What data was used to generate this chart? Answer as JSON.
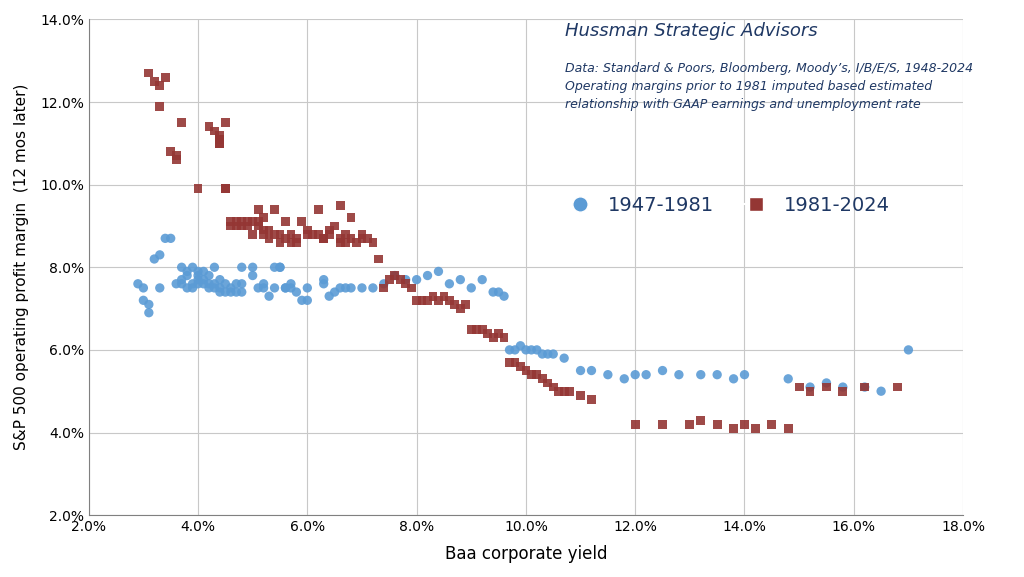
{
  "title": "Hussman Strategic Advisors",
  "subtitle1": "Data: Standard & Poors, Bloomberg, Moody’s, I/B/E/S, 1948-2024",
  "subtitle2": "Operating margins prior to 1981 imputed based estimated",
  "subtitle3": "relationship with GAAP earnings and unemployment rate",
  "xlabel": "Baa corporate yield",
  "ylabel": "S&P 500 operating profit margin  (12 mos later)",
  "legend1": "1947-1981",
  "legend2": "1981-2024",
  "color1": "#5B9BD5",
  "color2": "#943634",
  "xlim": [
    0.02,
    0.18
  ],
  "ylim": [
    0.02,
    0.14
  ],
  "xticks": [
    0.02,
    0.04,
    0.06,
    0.08,
    0.1,
    0.12,
    0.14,
    0.16,
    0.18
  ],
  "yticks": [
    0.02,
    0.04,
    0.06,
    0.08,
    0.1,
    0.12,
    0.14
  ],
  "text_color": "#1F3864",
  "series1_x": [
    0.029,
    0.03,
    0.03,
    0.031,
    0.031,
    0.032,
    0.033,
    0.033,
    0.034,
    0.035,
    0.036,
    0.037,
    0.037,
    0.037,
    0.038,
    0.038,
    0.038,
    0.039,
    0.039,
    0.039,
    0.04,
    0.04,
    0.04,
    0.04,
    0.041,
    0.041,
    0.041,
    0.042,
    0.042,
    0.042,
    0.043,
    0.043,
    0.043,
    0.044,
    0.044,
    0.044,
    0.045,
    0.045,
    0.046,
    0.046,
    0.047,
    0.047,
    0.048,
    0.048,
    0.048,
    0.05,
    0.05,
    0.051,
    0.052,
    0.052,
    0.053,
    0.054,
    0.054,
    0.055,
    0.055,
    0.056,
    0.056,
    0.057,
    0.057,
    0.058,
    0.059,
    0.06,
    0.06,
    0.063,
    0.063,
    0.064,
    0.065,
    0.066,
    0.067,
    0.068,
    0.07,
    0.072,
    0.074,
    0.076,
    0.078,
    0.08,
    0.082,
    0.084,
    0.086,
    0.088,
    0.09,
    0.092,
    0.094,
    0.095,
    0.096,
    0.097,
    0.098,
    0.099,
    0.1,
    0.101,
    0.102,
    0.103,
    0.104,
    0.105,
    0.107,
    0.11,
    0.112,
    0.115,
    0.118,
    0.12,
    0.122,
    0.125,
    0.128,
    0.132,
    0.135,
    0.138,
    0.14,
    0.148,
    0.152,
    0.155,
    0.158,
    0.162,
    0.165,
    0.17
  ],
  "series1_y": [
    0.076,
    0.072,
    0.075,
    0.071,
    0.069,
    0.082,
    0.075,
    0.083,
    0.087,
    0.087,
    0.076,
    0.076,
    0.077,
    0.08,
    0.075,
    0.078,
    0.079,
    0.075,
    0.076,
    0.08,
    0.076,
    0.077,
    0.078,
    0.079,
    0.076,
    0.077,
    0.079,
    0.075,
    0.076,
    0.078,
    0.075,
    0.076,
    0.08,
    0.074,
    0.075,
    0.077,
    0.074,
    0.076,
    0.074,
    0.075,
    0.074,
    0.076,
    0.074,
    0.076,
    0.08,
    0.08,
    0.078,
    0.075,
    0.075,
    0.076,
    0.073,
    0.075,
    0.08,
    0.08,
    0.08,
    0.075,
    0.075,
    0.075,
    0.076,
    0.074,
    0.072,
    0.072,
    0.075,
    0.076,
    0.077,
    0.073,
    0.074,
    0.075,
    0.075,
    0.075,
    0.075,
    0.075,
    0.076,
    0.078,
    0.077,
    0.077,
    0.078,
    0.079,
    0.076,
    0.077,
    0.075,
    0.077,
    0.074,
    0.074,
    0.073,
    0.06,
    0.06,
    0.061,
    0.06,
    0.06,
    0.06,
    0.059,
    0.059,
    0.059,
    0.058,
    0.055,
    0.055,
    0.054,
    0.053,
    0.054,
    0.054,
    0.055,
    0.054,
    0.054,
    0.054,
    0.053,
    0.054,
    0.053,
    0.051,
    0.052,
    0.051,
    0.051,
    0.05,
    0.06
  ],
  "series2_x": [
    0.031,
    0.032,
    0.033,
    0.033,
    0.034,
    0.035,
    0.036,
    0.036,
    0.037,
    0.04,
    0.042,
    0.043,
    0.044,
    0.044,
    0.044,
    0.044,
    0.044,
    0.045,
    0.045,
    0.045,
    0.046,
    0.046,
    0.047,
    0.047,
    0.048,
    0.048,
    0.049,
    0.049,
    0.05,
    0.05,
    0.051,
    0.051,
    0.051,
    0.052,
    0.052,
    0.052,
    0.053,
    0.053,
    0.054,
    0.054,
    0.055,
    0.055,
    0.056,
    0.056,
    0.057,
    0.057,
    0.058,
    0.058,
    0.059,
    0.06,
    0.06,
    0.061,
    0.062,
    0.062,
    0.063,
    0.063,
    0.064,
    0.064,
    0.065,
    0.066,
    0.066,
    0.066,
    0.067,
    0.067,
    0.068,
    0.068,
    0.069,
    0.07,
    0.07,
    0.071,
    0.072,
    0.073,
    0.074,
    0.075,
    0.076,
    0.077,
    0.078,
    0.079,
    0.08,
    0.081,
    0.082,
    0.083,
    0.084,
    0.085,
    0.086,
    0.087,
    0.088,
    0.089,
    0.09,
    0.091,
    0.092,
    0.093,
    0.094,
    0.095,
    0.096,
    0.097,
    0.098,
    0.099,
    0.1,
    0.101,
    0.102,
    0.103,
    0.104,
    0.105,
    0.106,
    0.107,
    0.108,
    0.11,
    0.112,
    0.12,
    0.125,
    0.13,
    0.132,
    0.135,
    0.138,
    0.14,
    0.142,
    0.145,
    0.148,
    0.15,
    0.152,
    0.155,
    0.158,
    0.162,
    0.168
  ],
  "series2_y": [
    0.127,
    0.125,
    0.124,
    0.119,
    0.126,
    0.108,
    0.107,
    0.106,
    0.115,
    0.099,
    0.114,
    0.113,
    0.112,
    0.111,
    0.111,
    0.11,
    0.11,
    0.099,
    0.099,
    0.115,
    0.09,
    0.091,
    0.09,
    0.091,
    0.09,
    0.091,
    0.09,
    0.091,
    0.088,
    0.091,
    0.091,
    0.09,
    0.094,
    0.088,
    0.089,
    0.092,
    0.087,
    0.089,
    0.088,
    0.094,
    0.086,
    0.088,
    0.087,
    0.091,
    0.086,
    0.088,
    0.086,
    0.087,
    0.091,
    0.088,
    0.089,
    0.088,
    0.094,
    0.088,
    0.087,
    0.087,
    0.088,
    0.089,
    0.09,
    0.086,
    0.087,
    0.095,
    0.088,
    0.086,
    0.087,
    0.092,
    0.086,
    0.087,
    0.088,
    0.087,
    0.086,
    0.082,
    0.075,
    0.077,
    0.078,
    0.077,
    0.076,
    0.075,
    0.072,
    0.072,
    0.072,
    0.073,
    0.072,
    0.073,
    0.072,
    0.071,
    0.07,
    0.071,
    0.065,
    0.065,
    0.065,
    0.064,
    0.063,
    0.064,
    0.063,
    0.057,
    0.057,
    0.056,
    0.055,
    0.054,
    0.054,
    0.053,
    0.052,
    0.051,
    0.05,
    0.05,
    0.05,
    0.049,
    0.048,
    0.042,
    0.042,
    0.042,
    0.043,
    0.042,
    0.041,
    0.042,
    0.041,
    0.042,
    0.041,
    0.051,
    0.05,
    0.051,
    0.05,
    0.051,
    0.051
  ]
}
